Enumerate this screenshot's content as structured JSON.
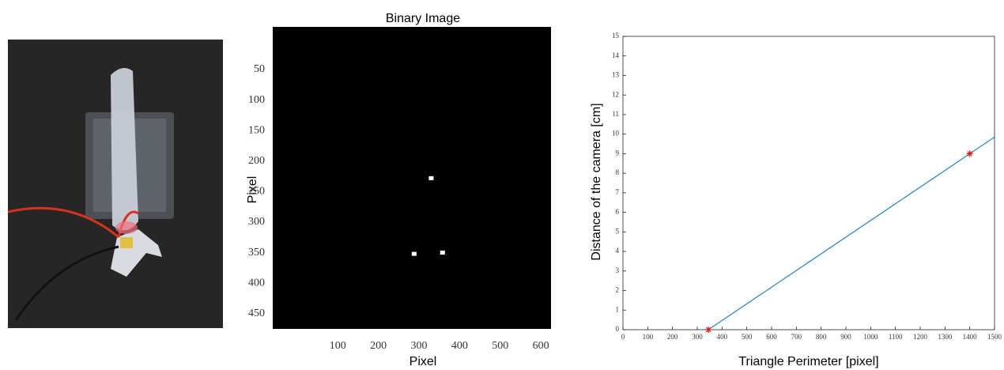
{
  "chart_data": [
    {
      "type": "image",
      "title": "Binary Image",
      "xlabel": "Pixel",
      "ylabel": "Pixel",
      "background": "#000000",
      "y_inverted": true,
      "xlim": [
        -60,
        625
      ],
      "ylim": [
        -20,
        475
      ],
      "xticks": [
        100,
        200,
        300,
        400,
        500,
        600
      ],
      "yticks": [
        50,
        100,
        150,
        200,
        250,
        300,
        350,
        400,
        450
      ],
      "series": [
        {
          "color": "#ffffff",
          "x": [
            330,
            288,
            358
          ],
          "values": [
            228,
            352,
            350
          ]
        }
      ]
    },
    {
      "type": "line",
      "xlabel": "Triangle Perimeter [pixel]",
      "ylabel": "Distance of the camera [cm]",
      "xlim": [
        0,
        1500
      ],
      "ylim": [
        0,
        15
      ],
      "xticks": [
        0,
        100,
        200,
        300,
        400,
        500,
        600,
        700,
        800,
        900,
        1000,
        1100,
        1200,
        1300,
        1400,
        1500
      ],
      "yticks": [
        0,
        1,
        2,
        3,
        4,
        5,
        6,
        7,
        8,
        9,
        10,
        11,
        12,
        13,
        14,
        15
      ],
      "series": [
        {
          "color": "#2a8bd0",
          "x": [
            345,
            1500
          ],
          "values": [
            0,
            9.85
          ]
        },
        {
          "color": "#e02020",
          "marker": "star",
          "x": [
            345,
            1400
          ],
          "values": [
            0,
            9
          ]
        }
      ]
    }
  ]
}
